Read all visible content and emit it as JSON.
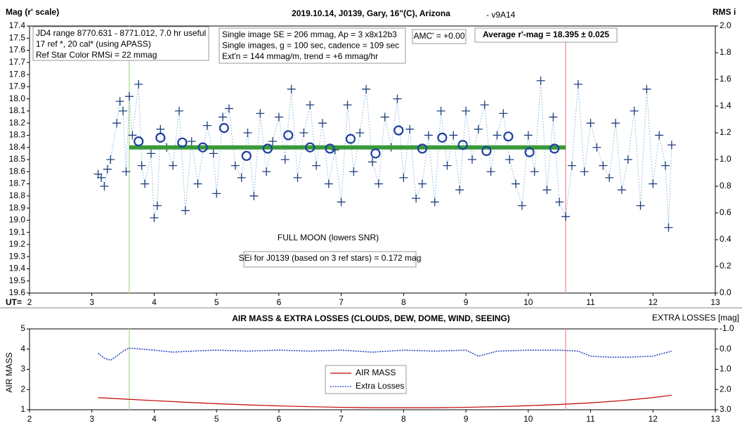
{
  "chart_data": [
    {
      "type": "scatter",
      "title": "2019.10.14, J0139, Gary, 16\"(C), Arizona",
      "subtitle": "- v9A14",
      "y_label": "Mag (r' scale)",
      "y2_label": "RMS i",
      "x_label": "UT=",
      "xlim": [
        2,
        13
      ],
      "xticks": [
        2,
        3,
        4,
        5,
        6,
        7,
        8,
        9,
        10,
        11,
        12,
        13
      ],
      "ylim": [
        17.4,
        19.6
      ],
      "y_reversed": true,
      "yticks": [
        17.4,
        17.5,
        17.6,
        17.7,
        17.8,
        17.9,
        {
          "value": 18.0,
          "label": "18.0"
        },
        18.1,
        18.2,
        18.3,
        18.4,
        18.5,
        18.6,
        18.7,
        18.8,
        18.9,
        {
          "value": 19.0,
          "label": "19.0"
        },
        19.1,
        19.2,
        19.3,
        19.4,
        19.5,
        19.6
      ],
      "y2lim": [
        0,
        2
      ],
      "y2ticks": [
        {
          "value": 0,
          "label": "0.0"
        },
        0.2,
        0.4,
        0.6,
        0.8,
        {
          "value": 1,
          "label": "1.0"
        },
        1.2,
        1.4,
        1.6,
        1.8,
        {
          "value": 2,
          "label": "2.0"
        }
      ],
      "points": {
        "color": "#1f3f7f",
        "x": [
          3.1,
          3.15,
          3.2,
          3.25,
          3.3,
          3.4,
          3.45,
          3.5,
          3.55,
          3.6,
          3.65,
          3.75,
          3.8,
          3.85,
          3.95,
          4.0,
          4.05,
          4.1,
          4.2,
          4.3,
          4.4,
          4.5,
          4.6,
          4.7,
          4.85,
          4.95,
          5.0,
          5.1,
          5.2,
          5.3,
          5.4,
          5.5,
          5.6,
          5.7,
          5.8,
          5.9,
          6.0,
          6.1,
          6.2,
          6.3,
          6.4,
          6.5,
          6.6,
          6.7,
          6.8,
          6.9,
          7.0,
          7.1,
          7.2,
          7.3,
          7.4,
          7.5,
          7.6,
          7.7,
          7.8,
          7.9,
          8.0,
          8.1,
          8.2,
          8.3,
          8.4,
          8.5,
          8.6,
          8.7,
          8.8,
          8.9,
          9.0,
          9.1,
          9.2,
          9.3,
          9.4,
          9.5,
          9.6,
          9.7,
          9.8,
          9.9,
          10.0,
          10.1,
          10.2,
          10.3,
          10.4,
          10.5,
          10.6,
          10.7,
          10.8,
          10.9,
          11.0,
          11.1,
          11.2,
          11.3,
          11.4,
          11.5,
          11.6,
          11.7,
          11.8,
          11.9,
          12.0,
          12.1,
          12.2,
          12.25,
          12.3
        ],
        "y": [
          18.62,
          18.65,
          18.72,
          18.58,
          18.5,
          18.2,
          18.02,
          18.1,
          18.6,
          17.98,
          18.3,
          17.88,
          18.55,
          18.7,
          18.45,
          18.98,
          18.88,
          18.25,
          18.4,
          18.55,
          18.1,
          18.92,
          18.35,
          18.7,
          18.22,
          18.45,
          18.78,
          18.15,
          18.08,
          18.55,
          18.65,
          18.28,
          18.8,
          18.12,
          18.6,
          18.35,
          18.15,
          18.5,
          17.92,
          18.65,
          18.28,
          18.05,
          18.55,
          18.2,
          18.7,
          18.42,
          18.85,
          18.05,
          18.6,
          18.28,
          17.92,
          18.52,
          18.7,
          18.15,
          18.4,
          18.0,
          18.65,
          18.25,
          18.82,
          18.7,
          18.3,
          18.85,
          18.1,
          18.55,
          18.3,
          18.75,
          18.1,
          18.5,
          18.25,
          18.05,
          18.6,
          18.3,
          18.12,
          18.5,
          18.7,
          18.88,
          18.3,
          18.6,
          17.85,
          18.75,
          18.15,
          18.85,
          18.97,
          18.55,
          17.88,
          18.6,
          18.2,
          18.4,
          18.55,
          18.65,
          18.2,
          18.75,
          18.5,
          18.1,
          18.88,
          17.92,
          18.7,
          18.3,
          18.55,
          19.06,
          18.38
        ]
      },
      "averages": {
        "color": "#1f3fa0",
        "x": [
          3.75,
          4.1,
          4.45,
          4.78,
          5.12,
          5.48,
          5.82,
          6.15,
          6.5,
          6.82,
          7.15,
          7.55,
          7.92,
          8.3,
          8.62,
          8.95,
          9.33,
          9.68,
          10.02,
          10.42
        ],
        "y": [
          18.35,
          18.32,
          18.36,
          18.4,
          18.24,
          18.47,
          18.41,
          18.3,
          18.4,
          18.41,
          18.33,
          18.45,
          18.26,
          18.41,
          18.32,
          18.38,
          18.43,
          18.31,
          18.44,
          18.41
        ]
      },
      "trend": {
        "color": "#3a9a3a",
        "x": [
          3.6,
          10.6
        ],
        "y": [
          18.4,
          18.4
        ]
      },
      "vlines": [
        {
          "x": 3.6,
          "color": "#b8e0a0"
        },
        {
          "x": 10.6,
          "color": "#f0a0a0"
        }
      ],
      "annotations": [
        [
          "JD4 range 8770.631 - 8771.012, 7.0 hr useful",
          "17 ref *, 20 cal* (using APASS)",
          "Ref Star Color RMSi = 22 mmag"
        ],
        [
          "Single image SE = 206 mmag, Ap = 3 x8x12b3",
          "Single images, g = 100 sec, cadence = 109 sec",
          "Ext'n = 144 mmag/m, trend = +6 mmag/hr"
        ],
        [
          "AMC' = +0.00"
        ],
        [
          "Average r'-mag =  18.395 ± 0.025"
        ],
        [
          "FULL MOON (lowers SNR)"
        ],
        [
          "SEi for J0139 (based on 3 ref stars) = 0.172 mag"
        ]
      ]
    },
    {
      "type": "line",
      "title": "AIR MASS & EXTRA LOSSES (CLOUDS, DEW, DOME, WIND, SEEING)",
      "y_label": "AIR MASS",
      "y2_label": "EXTRA LOSSES [mag]",
      "xlim": [
        2,
        13
      ],
      "xticks": [
        2,
        3,
        4,
        5,
        6,
        7,
        8,
        9,
        10,
        11,
        12,
        13
      ],
      "ylim": [
        1,
        5
      ],
      "yticks": [
        1,
        2,
        3,
        4,
        5
      ],
      "y2lim": [
        -1,
        3
      ],
      "y2_reversed": true,
      "y2ticks": [
        {
          "value": -1,
          "label": "-1.0"
        },
        {
          "value": 0,
          "label": "0.0"
        },
        {
          "value": 1,
          "label": "1.0"
        },
        {
          "value": 2,
          "label": "2.0"
        },
        {
          "value": 3,
          "label": "3.0"
        }
      ],
      "series": [
        {
          "name": "AIR MASS",
          "color": "#c00000",
          "x": [
            3.1,
            3.5,
            4,
            4.5,
            5,
            5.5,
            6,
            6.5,
            7,
            7.5,
            8,
            8.5,
            9,
            9.5,
            10,
            10.5,
            11,
            11.5,
            12,
            12.3
          ],
          "values": [
            1.6,
            1.53,
            1.45,
            1.37,
            1.3,
            1.24,
            1.19,
            1.15,
            1.12,
            1.1,
            1.1,
            1.1,
            1.12,
            1.15,
            1.2,
            1.26,
            1.34,
            1.45,
            1.6,
            1.72
          ]
        },
        {
          "name": "Extra Losses",
          "color": "#1f3fbf",
          "axis": "y2",
          "dashed": true,
          "x": [
            3.1,
            3.2,
            3.3,
            3.4,
            3.5,
            3.6,
            3.8,
            4.0,
            4.3,
            4.6,
            5.0,
            5.5,
            6.0,
            6.5,
            7.0,
            7.5,
            8.0,
            8.5,
            9.0,
            9.2,
            9.5,
            10.0,
            10.5,
            10.8,
            11.0,
            11.3,
            11.6,
            12.0,
            12.3
          ],
          "values": [
            0.2,
            0.45,
            0.55,
            0.35,
            0.1,
            -0.05,
            0.0,
            0.05,
            0.15,
            0.1,
            0.05,
            0.1,
            0.05,
            0.1,
            0.05,
            0.15,
            0.05,
            0.1,
            0.05,
            0.35,
            0.1,
            0.05,
            0.05,
            0.1,
            0.35,
            0.4,
            0.4,
            0.35,
            0.1
          ]
        }
      ],
      "vlines": [
        {
          "x": 3.6,
          "color": "#b8e0a0"
        },
        {
          "x": 10.6,
          "color": "#f0a0a0"
        }
      ]
    }
  ]
}
